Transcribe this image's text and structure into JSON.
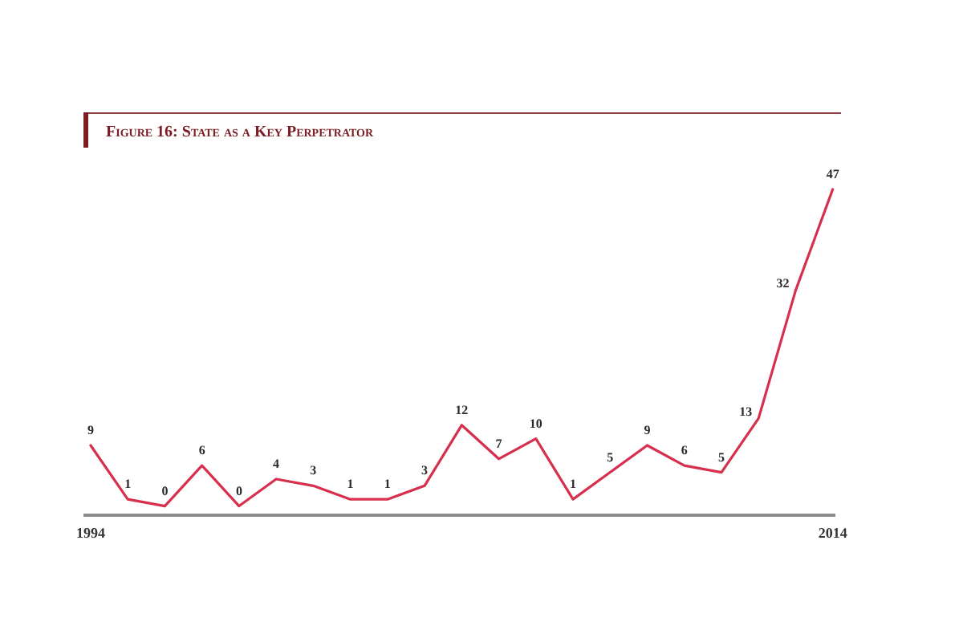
{
  "chart_data": {
    "type": "line",
    "title": "Figure 16: State as a Key Perpetrator",
    "x": [
      1994,
      1995,
      1996,
      1997,
      1998,
      1999,
      2000,
      2001,
      2002,
      2003,
      2004,
      2005,
      2006,
      2007,
      2008,
      2009,
      2010,
      2011,
      2012,
      2013,
      2014
    ],
    "xlim": [
      1993.85,
      2014.05
    ],
    "xticks": [
      1994,
      2014
    ],
    "series": [
      {
        "color": "#d6304e",
        "values": [
          9,
          1,
          0,
          6,
          0,
          4,
          3,
          1,
          1,
          3,
          12,
          7,
          10,
          1,
          5,
          9,
          6,
          5,
          13,
          32,
          47
        ]
      }
    ],
    "data_labels": true,
    "grid": false,
    "legend": false,
    "marker": "none",
    "line_style": "solid",
    "tick_labels": "x"
  }
}
